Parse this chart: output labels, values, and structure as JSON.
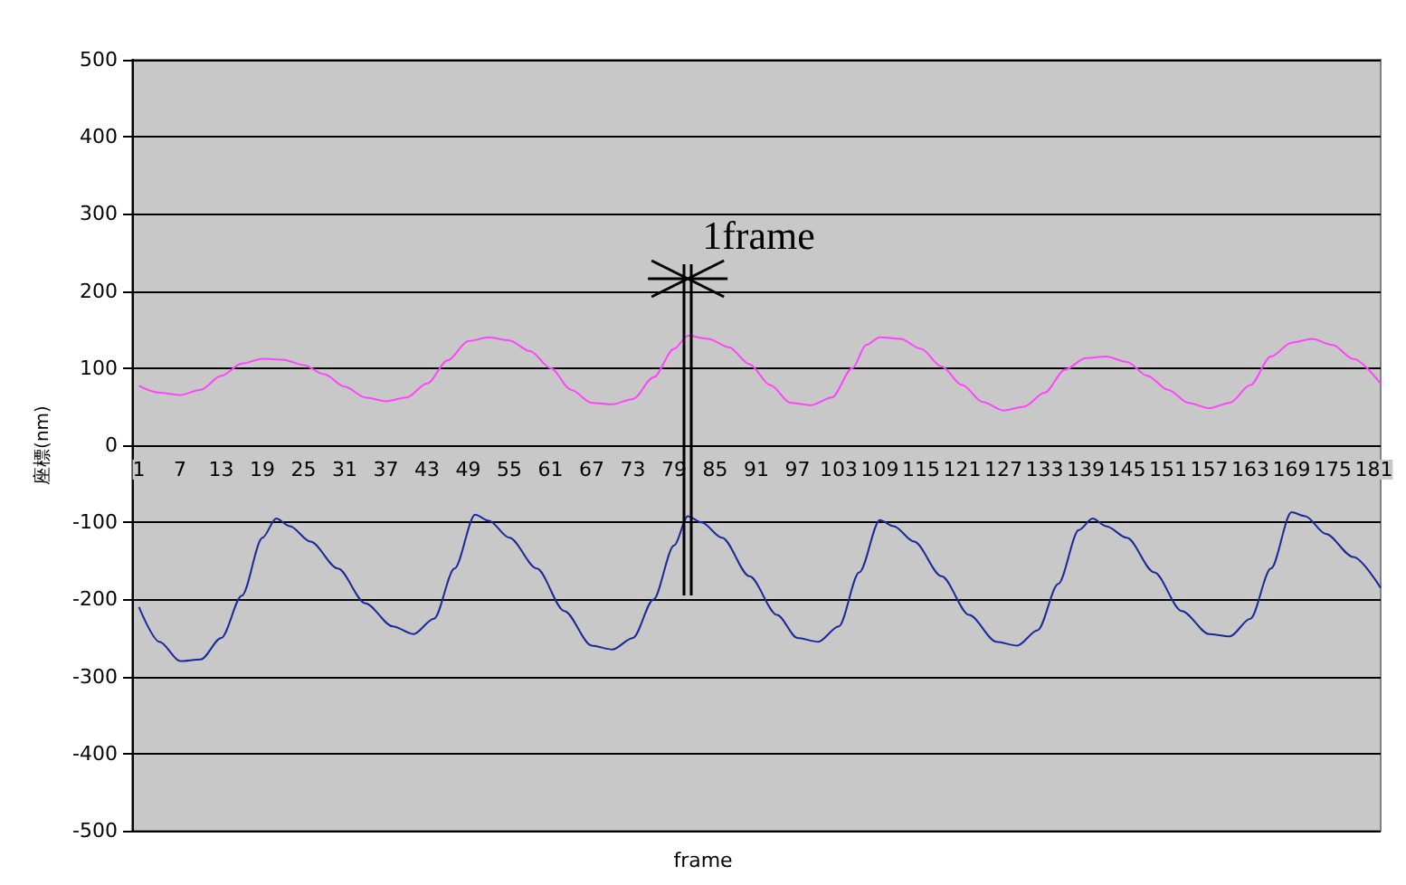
{
  "chart_data": {
    "type": "line",
    "xlabel": "frame",
    "ylabel": "座標(nm)",
    "xlim": [
      0,
      182
    ],
    "xticks": [
      1,
      7,
      13,
      19,
      25,
      31,
      37,
      43,
      49,
      55,
      61,
      67,
      73,
      79,
      85,
      91,
      97,
      103,
      109,
      115,
      121,
      127,
      133,
      139,
      145,
      151,
      157,
      163,
      169,
      175,
      181
    ],
    "ylim": [
      -500,
      500
    ],
    "yticks": [
      -500,
      -400,
      -300,
      -200,
      -100,
      0,
      100,
      200,
      300,
      400,
      500
    ],
    "grid": "y",
    "marker": "none",
    "line_style": "solid",
    "ref_lines": [
      {
        "axis": "x",
        "value": 81,
        "label": "1frame",
        "color": "#000000"
      }
    ],
    "series": [
      {
        "color": "#ff44ff",
        "x": [
          1,
          4,
          7,
          10,
          13,
          16,
          19,
          22,
          25,
          28,
          31,
          34,
          37,
          40,
          43,
          46,
          49,
          52,
          55,
          58,
          61,
          64,
          67,
          70,
          73,
          76,
          79,
          81,
          84,
          87,
          90,
          93,
          96,
          99,
          102,
          105,
          107,
          109,
          112,
          115,
          118,
          121,
          124,
          127,
          130,
          133,
          136,
          139,
          142,
          145,
          148,
          151,
          154,
          157,
          160,
          163,
          166,
          169,
          172,
          175,
          178,
          182
        ],
        "values": [
          77,
          68,
          65,
          72,
          90,
          106,
          112,
          111,
          104,
          92,
          76,
          62,
          57,
          62,
          80,
          110,
          135,
          140,
          136,
          122,
          100,
          72,
          55,
          53,
          60,
          88,
          125,
          142,
          138,
          127,
          105,
          78,
          55,
          52,
          62,
          100,
          130,
          140,
          138,
          125,
          102,
          78,
          56,
          45,
          50,
          68,
          98,
          113,
          115,
          108,
          90,
          72,
          55,
          48,
          55,
          78,
          115,
          133,
          138,
          130,
          112,
          80
        ]
      },
      {
        "color": "#1a2a99",
        "x": [
          1,
          4,
          7,
          10,
          13,
          16,
          19,
          21,
          23,
          26,
          30,
          34,
          38,
          41,
          44,
          47,
          50,
          52,
          55,
          59,
          63,
          67,
          70,
          73,
          76,
          79,
          81,
          83,
          86,
          90,
          94,
          97,
          100,
          103,
          106,
          109,
          111,
          114,
          118,
          122,
          126,
          129,
          132,
          135,
          138,
          140,
          142,
          145,
          149,
          153,
          157,
          160,
          163,
          166,
          169,
          171,
          174,
          178,
          182
        ],
        "values": [
          -210,
          -255,
          -280,
          -278,
          -250,
          -195,
          -120,
          -95,
          -105,
          -125,
          -160,
          -205,
          -235,
          -245,
          -225,
          -160,
          -90,
          -98,
          -120,
          -160,
          -215,
          -260,
          -265,
          -250,
          -200,
          -130,
          -92,
          -100,
          -120,
          -170,
          -220,
          -250,
          -255,
          -235,
          -165,
          -97,
          -105,
          -125,
          -170,
          -220,
          -255,
          -260,
          -240,
          -180,
          -110,
          -95,
          -105,
          -120,
          -165,
          -215,
          -245,
          -248,
          -225,
          -160,
          -87,
          -92,
          -115,
          -145,
          -185
        ]
      }
    ]
  }
}
